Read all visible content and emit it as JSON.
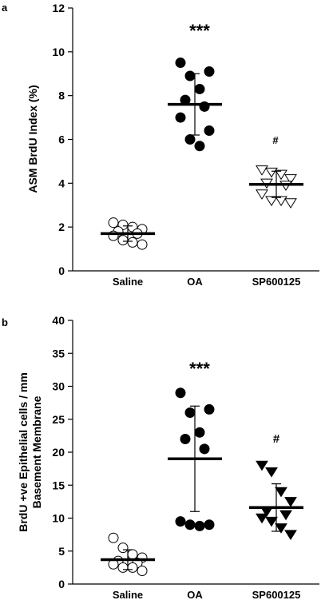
{
  "chart_data": [
    {
      "panel": "a",
      "type": "scatter",
      "title": "",
      "ylabel": "ASM BrdU Index (%)",
      "xlabel": "",
      "ylim": [
        0,
        12
      ],
      "yticks": [
        0,
        2,
        4,
        6,
        8,
        10,
        12
      ],
      "categories": [
        "Saline",
        "OA",
        "SP600125"
      ],
      "series": [
        {
          "category": "Saline",
          "marker": "circle-open",
          "values": [
            2.2,
            2.1,
            2.0,
            1.9,
            1.8,
            1.7,
            1.6,
            1.4,
            1.3,
            1.2
          ],
          "mean": 1.7,
          "sd": 0.35,
          "annotation": ""
        },
        {
          "category": "OA",
          "marker": "circle-filled",
          "values": [
            9.5,
            9.1,
            8.9,
            8.3,
            7.8,
            7.5,
            7.0,
            6.4,
            6.0,
            5.7
          ],
          "mean": 7.6,
          "sd": 1.4,
          "annotation": "***"
        },
        {
          "category": "SP600125",
          "marker": "triangle-down-open",
          "values": [
            4.6,
            4.5,
            4.4,
            4.2,
            4.0,
            3.9,
            3.5,
            3.2,
            3.2,
            3.1
          ],
          "mean": 3.95,
          "sd": 0.6,
          "annotation": "#"
        }
      ]
    },
    {
      "panel": "b",
      "type": "scatter",
      "title": "",
      "ylabel": "BrdU +ve Epithelial cells / mm Basement Membrane",
      "ylabel_lines": [
        "BrdU +ve Epithelial cells / mm",
        "Basement Membrane"
      ],
      "xlabel": "",
      "ylim": [
        0,
        40
      ],
      "yticks": [
        0,
        5,
        10,
        15,
        20,
        25,
        30,
        35,
        40
      ],
      "categories": [
        "Saline",
        "OA",
        "SP600125"
      ],
      "series": [
        {
          "category": "Saline",
          "marker": "circle-open",
          "values": [
            7.0,
            5.5,
            4.5,
            4.0,
            3.5,
            3.2,
            3.0,
            2.5,
            2.5,
            2.0
          ],
          "mean": 3.7,
          "sd": 1.5,
          "annotation": ""
        },
        {
          "category": "OA",
          "marker": "circle-filled",
          "values": [
            29.0,
            26.5,
            26.0,
            23.0,
            22.0,
            20.5,
            9.5,
            9.0,
            9.0,
            8.8
          ],
          "mean": 19.0,
          "sd": 8.0,
          "annotation": "***"
        },
        {
          "category": "SP600125",
          "marker": "triangle-down-filled",
          "values": [
            18.0,
            17.0,
            14.0,
            12.5,
            11.0,
            10.5,
            10.0,
            9.5,
            8.5,
            7.5
          ],
          "mean": 11.6,
          "sd": 3.6,
          "annotation": "#"
        }
      ]
    }
  ]
}
